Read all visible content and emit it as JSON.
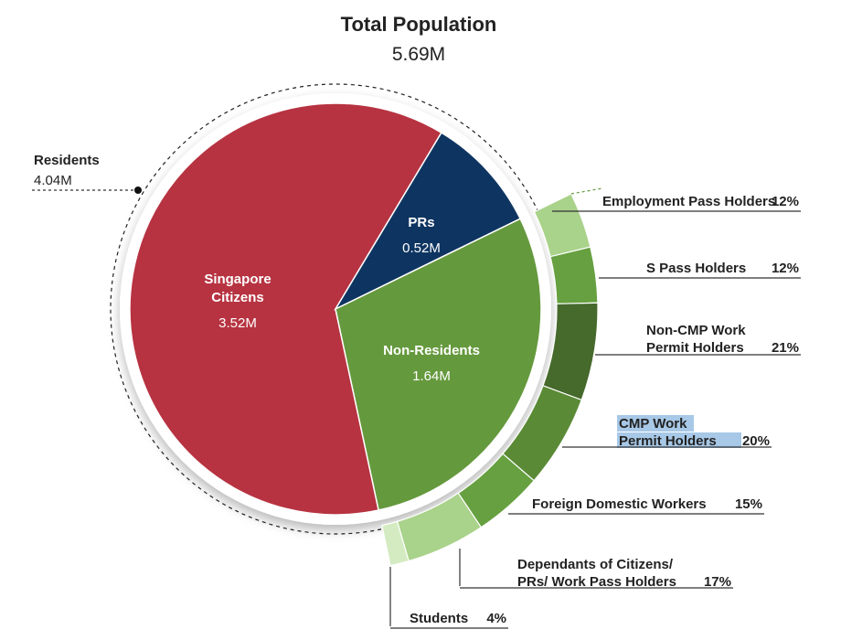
{
  "colors": {
    "citizens": "#B73341",
    "prs": "#0E3561",
    "non_residents": "#65993D",
    "highlight": "#A7C8E6"
  },
  "chart_data": {
    "type": "pie",
    "title": "Total Population",
    "subtitle": "5.69M",
    "residents": {
      "label": "Residents",
      "value_label": "4.04M",
      "value": 4.04
    },
    "inner": [
      {
        "key": "citizens",
        "name_lines": [
          "Singapore",
          "Citizens"
        ],
        "value_label": "3.52M",
        "value": 3.52,
        "color": "#B73341"
      },
      {
        "key": "prs",
        "name_lines": [
          "PRs"
        ],
        "value_label": "0.52M",
        "value": 0.52,
        "color": "#0E3561"
      },
      {
        "key": "non_residents",
        "name_lines": [
          "Non-Residents"
        ],
        "value_label": "1.64M",
        "value": 1.64,
        "color": "#65993D"
      }
    ],
    "breakdown": [
      {
        "lines": [
          "Employment Pass Holders"
        ],
        "percent_label": "12%",
        "percent": 12,
        "color": "#A9D28A"
      },
      {
        "lines": [
          "S Pass Holders"
        ],
        "percent_label": "12%",
        "percent": 12,
        "color": "#66A040"
      },
      {
        "lines": [
          "Non-CMP Work",
          "Permit Holders"
        ],
        "percent_label": "21%",
        "percent": 21,
        "color": "#46692C"
      },
      {
        "lines": [
          "CMP Work",
          "Permit Holders"
        ],
        "percent_label": "20%",
        "percent": 20,
        "color": "#5A8A36",
        "highlighted": true
      },
      {
        "lines": [
          "Foreign Domestic Workers"
        ],
        "percent_label": "15%",
        "percent": 15,
        "color": "#66A040"
      },
      {
        "lines": [
          "Dependants of Citizens/",
          "PRs/ Work Pass Holders"
        ],
        "percent_label": "17%",
        "percent": 17,
        "color": "#A9D28A"
      },
      {
        "lines": [
          "Students"
        ],
        "percent_label": "4%",
        "percent": 4,
        "color": "#D4EBC2"
      }
    ]
  }
}
